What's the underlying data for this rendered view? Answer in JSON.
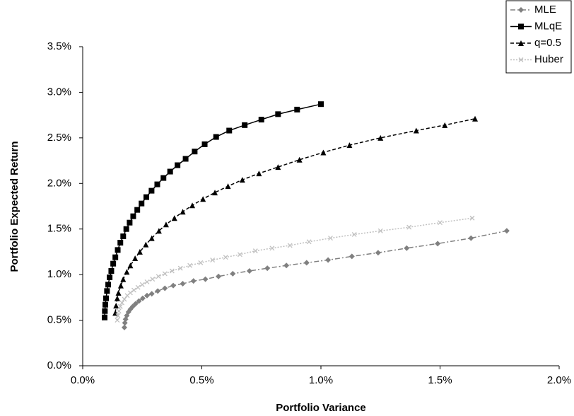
{
  "chart_data": {
    "type": "line",
    "x_label": "Portfolio Variance",
    "y_label": "Portfolio Expected Return",
    "xlim": [
      0,
      2.0
    ],
    "ylim": [
      0,
      3.5
    ],
    "xticks": [
      {
        "value": 0,
        "label": "0.0%"
      },
      {
        "value": 0.5,
        "label": "0.5%"
      },
      {
        "value": 1.0,
        "label": "1.0%"
      },
      {
        "value": 1.5,
        "label": "1.5%"
      },
      {
        "value": 2.0,
        "label": "2.0%"
      }
    ],
    "yticks": [
      {
        "value": 0,
        "label": "0.0%"
      },
      {
        "value": 0.5,
        "label": "0.5%"
      },
      {
        "value": 1.0,
        "label": "1.0%"
      },
      {
        "value": 1.5,
        "label": "1.5%"
      },
      {
        "value": 2.0,
        "label": "2.0%"
      },
      {
        "value": 2.5,
        "label": "2.5%"
      },
      {
        "value": 3.0,
        "label": "3.0%"
      },
      {
        "value": 3.5,
        "label": "3.5%"
      }
    ],
    "grid": false,
    "legend": "upper right",
    "series": [
      {
        "name": "MLE",
        "color": "#808080",
        "marker": "diamond",
        "dash": "dash-dot",
        "x": [
          0.175,
          0.177,
          0.18,
          0.185,
          0.192,
          0.2,
          0.21,
          0.222,
          0.236,
          0.252,
          0.27,
          0.29,
          0.315,
          0.345,
          0.38,
          0.42,
          0.465,
          0.515,
          0.57,
          0.63,
          0.7,
          0.775,
          0.855,
          0.94,
          1.03,
          1.13,
          1.24,
          1.36,
          1.49,
          1.63,
          1.78
        ],
        "values": [
          0.42,
          0.47,
          0.51,
          0.55,
          0.59,
          0.62,
          0.65,
          0.68,
          0.71,
          0.74,
          0.77,
          0.79,
          0.82,
          0.85,
          0.88,
          0.9,
          0.93,
          0.95,
          0.98,
          1.01,
          1.04,
          1.07,
          1.1,
          1.13,
          1.16,
          1.2,
          1.24,
          1.29,
          1.34,
          1.4,
          1.48
        ]
      },
      {
        "name": "MLqE",
        "color": "#000000",
        "marker": "square",
        "dash": "solid",
        "x": [
          0.092,
          0.093,
          0.095,
          0.098,
          0.102,
          0.107,
          0.113,
          0.12,
          0.128,
          0.137,
          0.147,
          0.158,
          0.17,
          0.183,
          0.197,
          0.212,
          0.229,
          0.247,
          0.267,
          0.289,
          0.313,
          0.339,
          0.367,
          0.398,
          0.432,
          0.47,
          0.512,
          0.56,
          0.615,
          0.68,
          0.75,
          0.82,
          0.9,
          1.0
        ],
        "values": [
          0.53,
          0.6,
          0.67,
          0.74,
          0.82,
          0.89,
          0.97,
          1.04,
          1.12,
          1.19,
          1.27,
          1.35,
          1.42,
          1.5,
          1.57,
          1.64,
          1.71,
          1.78,
          1.85,
          1.92,
          1.99,
          2.06,
          2.13,
          2.2,
          2.27,
          2.35,
          2.43,
          2.51,
          2.58,
          2.64,
          2.7,
          2.76,
          2.81,
          2.87
        ]
      },
      {
        "name": "q=0.5",
        "color": "#000000",
        "marker": "triangle",
        "dash": "dash",
        "x": [
          0.137,
          0.14,
          0.145,
          0.15,
          0.16,
          0.17,
          0.185,
          0.2,
          0.22,
          0.24,
          0.265,
          0.29,
          0.32,
          0.35,
          0.385,
          0.42,
          0.46,
          0.505,
          0.555,
          0.61,
          0.67,
          0.74,
          0.82,
          0.91,
          1.01,
          1.12,
          1.25,
          1.4,
          1.52,
          1.647
        ],
        "values": [
          0.58,
          0.66,
          0.74,
          0.8,
          0.88,
          0.95,
          1.03,
          1.1,
          1.18,
          1.25,
          1.33,
          1.4,
          1.48,
          1.55,
          1.62,
          1.69,
          1.76,
          1.83,
          1.9,
          1.97,
          2.04,
          2.11,
          2.18,
          2.26,
          2.34,
          2.42,
          2.5,
          2.58,
          2.64,
          2.71
        ]
      },
      {
        "name": "Huber",
        "color": "#c0c0c0",
        "marker": "x",
        "dash": "dot",
        "x": [
          0.145,
          0.148,
          0.152,
          0.158,
          0.165,
          0.175,
          0.187,
          0.2,
          0.215,
          0.232,
          0.25,
          0.27,
          0.293,
          0.318,
          0.345,
          0.375,
          0.41,
          0.45,
          0.495,
          0.545,
          0.6,
          0.66,
          0.725,
          0.795,
          0.87,
          0.95,
          1.04,
          1.14,
          1.25,
          1.37,
          1.5,
          1.635
        ],
        "values": [
          0.5,
          0.55,
          0.6,
          0.65,
          0.69,
          0.73,
          0.77,
          0.8,
          0.83,
          0.86,
          0.89,
          0.92,
          0.95,
          0.98,
          1.01,
          1.04,
          1.07,
          1.1,
          1.13,
          1.16,
          1.19,
          1.22,
          1.26,
          1.29,
          1.32,
          1.36,
          1.4,
          1.44,
          1.48,
          1.52,
          1.57,
          1.62
        ]
      }
    ]
  }
}
